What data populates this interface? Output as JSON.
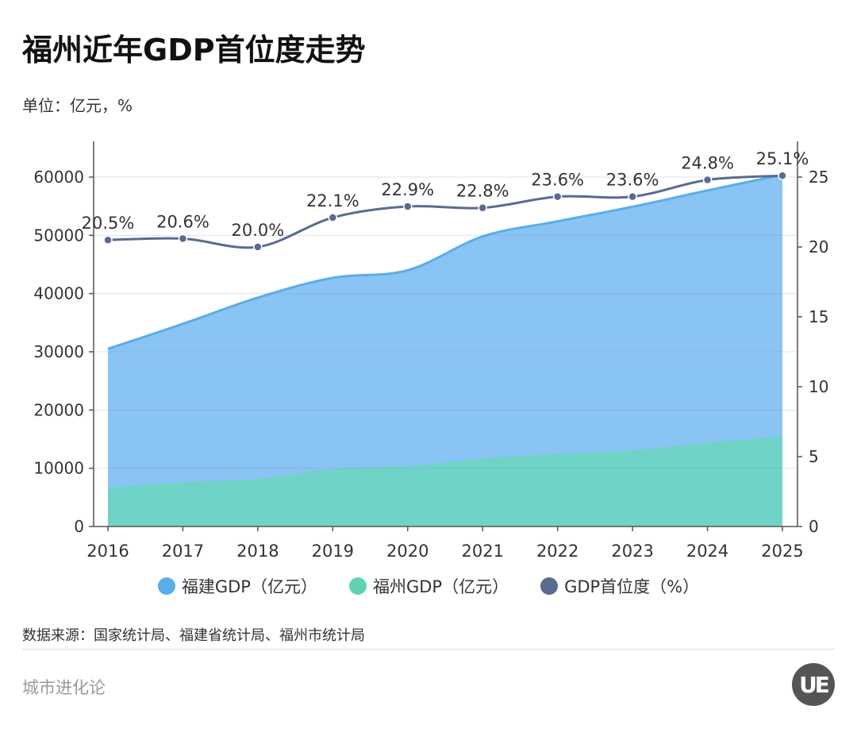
{
  "title": "福州近年GDP首位度走势",
  "unit": "单位：亿元，%",
  "source": "数据来源：国家统计局、福建省统计局、福州市统计局",
  "brand": "城市进化论",
  "logo_text": "UE",
  "chart_data": {
    "type": "area+line",
    "categories": [
      "2016",
      "2017",
      "2018",
      "2019",
      "2020",
      "2021",
      "2022",
      "2023",
      "2024",
      "2025"
    ],
    "left_axis": {
      "ylim": [
        0,
        60000
      ],
      "ticks": [
        0,
        10000,
        20000,
        30000,
        40000,
        50000,
        60000
      ]
    },
    "right_axis": {
      "ylim": [
        0,
        25
      ],
      "ticks": [
        0,
        5,
        10,
        15,
        20,
        25
      ]
    },
    "grid": true,
    "legend_position": "bottom",
    "series": [
      {
        "name": "福建GDP（亿元）",
        "type": "area",
        "axis": "left",
        "color": "#8ac4f5",
        "stroke": "#5aaee8",
        "values": [
          30500,
          34800,
          39300,
          42700,
          44000,
          49800,
          52400,
          54900,
          57700,
          60400
        ]
      },
      {
        "name": "福州GDP（亿元）",
        "type": "area",
        "axis": "left",
        "color": "#6fd4c4",
        "values": [
          6700,
          7600,
          8200,
          9900,
          10400,
          11700,
          12500,
          13100,
          14400,
          15500
        ]
      },
      {
        "name": "GDP首位度（%）",
        "type": "line",
        "axis": "right",
        "color": "#5a6a90",
        "values": [
          20.5,
          20.6,
          20.0,
          22.1,
          22.9,
          22.8,
          23.6,
          23.6,
          24.8,
          25.1
        ],
        "labels": [
          "20.5%",
          "20.6%",
          "20.0%",
          "22.1%",
          "22.9%",
          "22.8%",
          "23.6%",
          "23.6%",
          "24.8%",
          "25.1%"
        ]
      }
    ]
  }
}
